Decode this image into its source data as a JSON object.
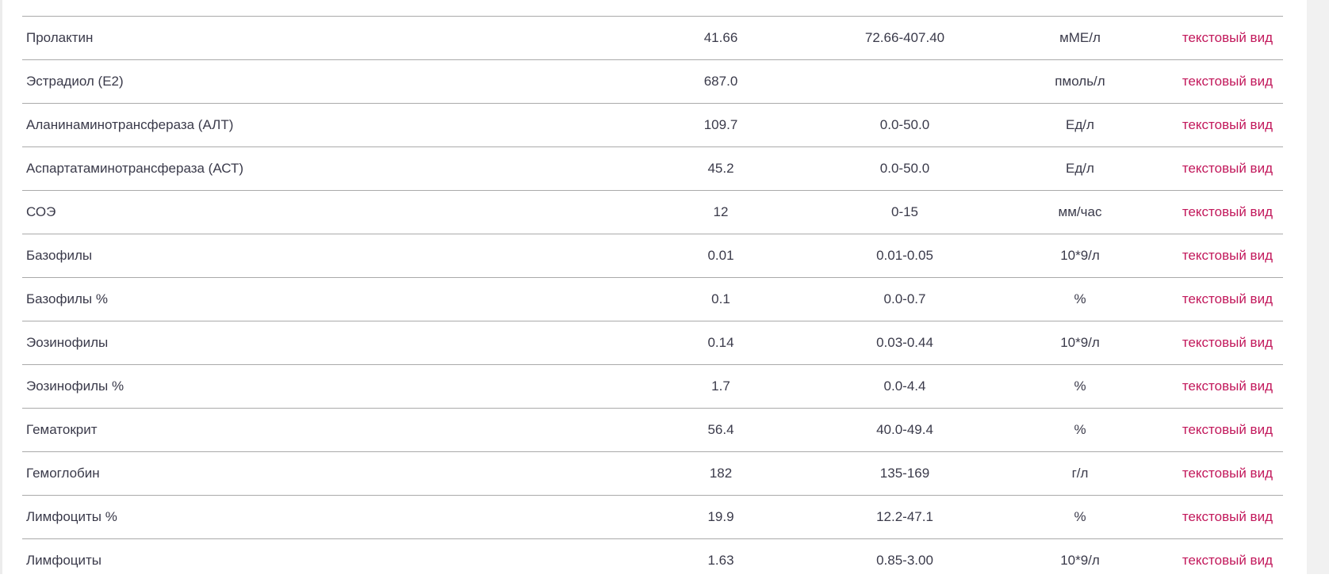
{
  "colors": {
    "link": "#c2185b",
    "text": "#3a3a4a",
    "divider": "#aaaaaa"
  },
  "rows": [
    {
      "name": "Пролактин",
      "value": "41.66",
      "range": "72.66-407.40",
      "unit": "мМЕ/л",
      "link": "текстовый вид"
    },
    {
      "name": "Эстрадиол (E2)",
      "value": "687.0",
      "range": "",
      "unit": "пмоль/л",
      "link": "текстовый вид"
    },
    {
      "name": "Аланинаминотрансфераза (АЛТ)",
      "value": "109.7",
      "range": "0.0-50.0",
      "unit": "Ед/л",
      "link": "текстовый вид"
    },
    {
      "name": "Аспартатаминотрансфераза (АСТ)",
      "value": "45.2",
      "range": "0.0-50.0",
      "unit": "Ед/л",
      "link": "текстовый вид"
    },
    {
      "name": "СОЭ",
      "value": "12",
      "range": "0-15",
      "unit": "мм/час",
      "link": "текстовый вид"
    },
    {
      "name": "Базофилы",
      "value": "0.01",
      "range": "0.01-0.05",
      "unit": "10*9/л",
      "link": "текстовый вид"
    },
    {
      "name": "Базофилы %",
      "value": "0.1",
      "range": "0.0-0.7",
      "unit": "%",
      "link": "текстовый вид"
    },
    {
      "name": "Эозинофилы",
      "value": "0.14",
      "range": "0.03-0.44",
      "unit": "10*9/л",
      "link": "текстовый вид"
    },
    {
      "name": "Эозинофилы %",
      "value": "1.7",
      "range": "0.0-4.4",
      "unit": "%",
      "link": "текстовый вид"
    },
    {
      "name": "Гематокрит",
      "value": "56.4",
      "range": "40.0-49.4",
      "unit": "%",
      "link": "текстовый вид"
    },
    {
      "name": "Гемоглобин",
      "value": "182",
      "range": "135-169",
      "unit": "г/л",
      "link": "текстовый вид"
    },
    {
      "name": "Лимфоциты %",
      "value": "19.9",
      "range": "12.2-47.1",
      "unit": "%",
      "link": "текстовый вид"
    },
    {
      "name": "Лимфоциты",
      "value": "1.63",
      "range": "0.85-3.00",
      "unit": "10*9/л",
      "link": "текстовый вид"
    }
  ]
}
